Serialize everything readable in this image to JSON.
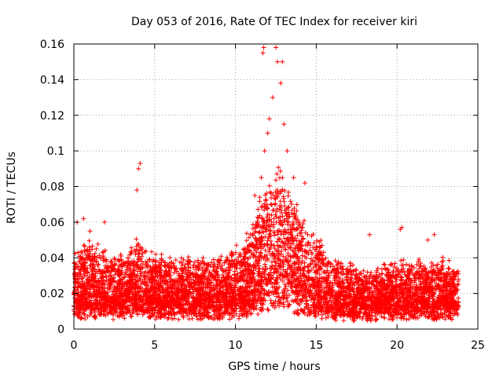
{
  "chart_data": {
    "type": "scatter",
    "title": "Day 053 of 2016, Rate Of TEC Index for receiver kiri",
    "xlabel": "GPS time / hours",
    "ylabel": "ROTI / TECUs",
    "xlim": [
      0,
      25
    ],
    "ylim": [
      0,
      0.16
    ],
    "xticks": [
      0,
      5,
      10,
      15,
      20,
      25
    ],
    "yticks": [
      0,
      0.02,
      0.04,
      0.06,
      0.08,
      0.1,
      0.12,
      0.14,
      0.16
    ],
    "ytick_labels": [
      "0",
      "0.02",
      "0.04",
      "0.06",
      "0.08",
      "0.1",
      "0.12",
      "0.14",
      "0.16"
    ],
    "grid": true,
    "marker": "+",
    "color": "#ff0000",
    "x_extent_hours": [
      0,
      23.8
    ],
    "envelope": {
      "hours": [
        0,
        1,
        2,
        3,
        3.5,
        4,
        4.5,
        5,
        6,
        7,
        8,
        9,
        10,
        11,
        11.5,
        12,
        12.5,
        13,
        13.5,
        14,
        15,
        16,
        17,
        18,
        19,
        20,
        21,
        22,
        23,
        23.8
      ],
      "baseline": [
        0.012,
        0.013,
        0.012,
        0.012,
        0.013,
        0.014,
        0.012,
        0.013,
        0.012,
        0.013,
        0.012,
        0.012,
        0.013,
        0.016,
        0.02,
        0.022,
        0.024,
        0.024,
        0.022,
        0.02,
        0.015,
        0.012,
        0.011,
        0.01,
        0.011,
        0.012,
        0.012,
        0.012,
        0.012,
        0.011
      ],
      "spread": [
        0.03,
        0.035,
        0.03,
        0.028,
        0.03,
        0.035,
        0.03,
        0.028,
        0.025,
        0.025,
        0.025,
        0.026,
        0.03,
        0.04,
        0.05,
        0.06,
        0.065,
        0.06,
        0.05,
        0.045,
        0.035,
        0.025,
        0.025,
        0.022,
        0.022,
        0.025,
        0.025,
        0.025,
        0.025,
        0.02
      ]
    },
    "notable_points": [
      {
        "x": 0.2,
        "y": 0.06
      },
      {
        "x": 0.6,
        "y": 0.062
      },
      {
        "x": 1.0,
        "y": 0.055
      },
      {
        "x": 1.9,
        "y": 0.06
      },
      {
        "x": 3.9,
        "y": 0.078
      },
      {
        "x": 4.0,
        "y": 0.09
      },
      {
        "x": 4.1,
        "y": 0.093
      },
      {
        "x": 11.2,
        "y": 0.075
      },
      {
        "x": 11.6,
        "y": 0.085
      },
      {
        "x": 11.8,
        "y": 0.1
      },
      {
        "x": 12.0,
        "y": 0.11
      },
      {
        "x": 12.1,
        "y": 0.118
      },
      {
        "x": 11.7,
        "y": 0.155
      },
      {
        "x": 11.75,
        "y": 0.158
      },
      {
        "x": 12.3,
        "y": 0.13
      },
      {
        "x": 12.5,
        "y": 0.158
      },
      {
        "x": 12.6,
        "y": 0.15
      },
      {
        "x": 12.9,
        "y": 0.15
      },
      {
        "x": 12.8,
        "y": 0.138
      },
      {
        "x": 13.0,
        "y": 0.115
      },
      {
        "x": 13.2,
        "y": 0.1
      },
      {
        "x": 13.6,
        "y": 0.085
      },
      {
        "x": 14.3,
        "y": 0.082
      },
      {
        "x": 18.3,
        "y": 0.053
      },
      {
        "x": 20.2,
        "y": 0.056
      },
      {
        "x": 20.3,
        "y": 0.057
      },
      {
        "x": 22.3,
        "y": 0.053
      },
      {
        "x": 21.9,
        "y": 0.05
      }
    ],
    "scatter_density_per_hour": 260,
    "random_seed": 53
  }
}
